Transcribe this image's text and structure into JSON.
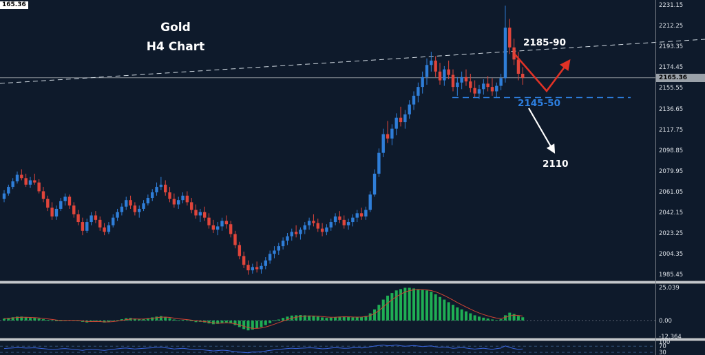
{
  "window": {
    "corner_price": "165.36"
  },
  "titles": {
    "line1": "Gold",
    "line2": "H4 Chart"
  },
  "annotations": {
    "resistance_label": "2185-90",
    "support_label": "2145-50",
    "target_label": "2110",
    "current_price": "2165.36"
  },
  "axis": {
    "price_labels": [
      2231.15,
      2212.25,
      2193.35,
      2174.45,
      2155.55,
      2136.65,
      2117.75,
      2098.85,
      2079.95,
      2061.05,
      2042.15,
      2023.25,
      2004.35,
      1985.45
    ],
    "macd_labels": [
      {
        "text": "25.039",
        "value": 25.039
      },
      {
        "text": "0.00",
        "value": 0
      },
      {
        "text": "-12.364",
        "value": -12.364
      }
    ],
    "rsi_labels": [
      {
        "text": "100",
        "value": 100
      },
      {
        "text": "70",
        "value": 70
      },
      {
        "text": "30",
        "value": 30
      }
    ]
  },
  "colors": {
    "background": "#0e1a2b",
    "up_candle": "#2f7ed8",
    "down_candle": "#e0453b",
    "macd_histogram": "#1fae54",
    "macd_signal": "#cf4433",
    "rsi_line": "#3a66e0",
    "level_blue": "#2d7fe0",
    "trendline": "#cfd8e0",
    "hline": "#8a9098",
    "annotation_red": "#e03226",
    "annotation_white": "#ffffff",
    "axis_text": "#dde2e8"
  },
  "chart_data": [
    {
      "type": "candlestick",
      "symbol": "Gold",
      "timeframe": "H4",
      "title": "Gold H4 Chart",
      "current_price": 2165.36,
      "ylim": [
        1985.45,
        2231.15
      ],
      "y_axis_ticks": [
        2231.15,
        2212.25,
        2193.35,
        2174.45,
        2155.55,
        2136.65,
        2117.75,
        2098.85,
        2079.95,
        2061.05,
        2042.15,
        2023.25,
        2004.35,
        1985.45
      ],
      "annotations": {
        "resistance_zone": "2185-90",
        "support_zone": "2145-50",
        "downside_target": "2110",
        "trendline": "ascending dashed trendline",
        "projection": "red zigzag arrow up to 2185-90, white arrow down to 2110"
      },
      "candles": [
        [
          2055,
          2063,
          2052,
          2060
        ],
        [
          2060,
          2068,
          2058,
          2066
        ],
        [
          2066,
          2074,
          2064,
          2071
        ],
        [
          2071,
          2080,
          2069,
          2077
        ],
        [
          2077,
          2082,
          2072,
          2074
        ],
        [
          2074,
          2078,
          2066,
          2068
        ],
        [
          2068,
          2075,
          2065,
          2072
        ],
        [
          2072,
          2078,
          2068,
          2070
        ],
        [
          2070,
          2073,
          2060,
          2062
        ],
        [
          2062,
          2066,
          2052,
          2055
        ],
        [
          2055,
          2058,
          2044,
          2047
        ],
        [
          2047,
          2052,
          2036,
          2039
        ],
        [
          2039,
          2049,
          2036,
          2046
        ],
        [
          2046,
          2056,
          2044,
          2053
        ],
        [
          2053,
          2060,
          2049,
          2057
        ],
        [
          2057,
          2059,
          2046,
          2049
        ],
        [
          2049,
          2052,
          2038,
          2041
        ],
        [
          2041,
          2045,
          2031,
          2034
        ],
        [
          2034,
          2038,
          2022,
          2026
        ],
        [
          2026,
          2037,
          2024,
          2034
        ],
        [
          2034,
          2043,
          2031,
          2040
        ],
        [
          2040,
          2044,
          2033,
          2036
        ],
        [
          2036,
          2039,
          2026,
          2029
        ],
        [
          2029,
          2033,
          2022,
          2025
        ],
        [
          2025,
          2034,
          2023,
          2031
        ],
        [
          2031,
          2041,
          2029,
          2038
        ],
        [
          2038,
          2046,
          2035,
          2043
        ],
        [
          2043,
          2051,
          2040,
          2048
        ],
        [
          2048,
          2057,
          2045,
          2054
        ],
        [
          2054,
          2058,
          2046,
          2049
        ],
        [
          2049,
          2052,
          2040,
          2043
        ],
        [
          2043,
          2049,
          2038,
          2046
        ],
        [
          2046,
          2054,
          2044,
          2051
        ],
        [
          2051,
          2059,
          2049,
          2056
        ],
        [
          2056,
          2064,
          2053,
          2061
        ],
        [
          2061,
          2070,
          2058,
          2066
        ],
        [
          2066,
          2075,
          2063,
          2068
        ],
        [
          2068,
          2072,
          2058,
          2061
        ],
        [
          2061,
          2066,
          2052,
          2055
        ],
        [
          2055,
          2060,
          2047,
          2050
        ],
        [
          2050,
          2057,
          2046,
          2054
        ],
        [
          2054,
          2061,
          2051,
          2058
        ],
        [
          2058,
          2062,
          2049,
          2052
        ],
        [
          2052,
          2056,
          2042,
          2045
        ],
        [
          2045,
          2050,
          2037,
          2040
        ],
        [
          2040,
          2046,
          2034,
          2043
        ],
        [
          2043,
          2048,
          2035,
          2038
        ],
        [
          2038,
          2042,
          2028,
          2031
        ],
        [
          2031,
          2036,
          2024,
          2027
        ],
        [
          2027,
          2034,
          2022,
          2030
        ],
        [
          2030,
          2038,
          2026,
          2035
        ],
        [
          2035,
          2040,
          2028,
          2032
        ],
        [
          2032,
          2035,
          2020,
          2023
        ],
        [
          2023,
          2026,
          2010,
          2013
        ],
        [
          2013,
          2016,
          2000,
          2003
        ],
        [
          2003,
          2007,
          1992,
          1995
        ],
        [
          1995,
          1999,
          1986,
          1990
        ],
        [
          1990,
          1996,
          1987,
          1993
        ],
        [
          1993,
          1998,
          1988,
          1991
        ],
        [
          1991,
          1997,
          1987,
          1994
        ],
        [
          1994,
          2002,
          1991,
          1999
        ],
        [
          1999,
          2008,
          1996,
          2005
        ],
        [
          2005,
          2012,
          2001,
          2008
        ],
        [
          2008,
          2015,
          2004,
          2012
        ],
        [
          2012,
          2020,
          2009,
          2017
        ],
        [
          2017,
          2024,
          2013,
          2021
        ],
        [
          2021,
          2028,
          2017,
          2025
        ],
        [
          2025,
          2031,
          2020,
          2023
        ],
        [
          2023,
          2029,
          2018,
          2027
        ],
        [
          2027,
          2034,
          2023,
          2031
        ],
        [
          2031,
          2038,
          2027,
          2035
        ],
        [
          2035,
          2041,
          2030,
          2033
        ],
        [
          2033,
          2037,
          2025,
          2028
        ],
        [
          2028,
          2033,
          2021,
          2025
        ],
        [
          2025,
          2032,
          2022,
          2029
        ],
        [
          2029,
          2037,
          2026,
          2034
        ],
        [
          2034,
          2042,
          2031,
          2039
        ],
        [
          2039,
          2044,
          2033,
          2036
        ],
        [
          2036,
          2040,
          2028,
          2031
        ],
        [
          2031,
          2037,
          2027,
          2034
        ],
        [
          2034,
          2041,
          2030,
          2038
        ],
        [
          2038,
          2045,
          2034,
          2042
        ],
        [
          2042,
          2047,
          2036,
          2039
        ],
        [
          2039,
          2048,
          2036,
          2045
        ],
        [
          2045,
          2062,
          2043,
          2059
        ],
        [
          2059,
          2082,
          2057,
          2078
        ],
        [
          2078,
          2101,
          2075,
          2097
        ],
        [
          2097,
          2119,
          2093,
          2114
        ],
        [
          2114,
          2126,
          2106,
          2110
        ],
        [
          2110,
          2123,
          2104,
          2119
        ],
        [
          2119,
          2133,
          2113,
          2129
        ],
        [
          2129,
          2139,
          2121,
          2125
        ],
        [
          2125,
          2136,
          2119,
          2132
        ],
        [
          2132,
          2145,
          2128,
          2141
        ],
        [
          2141,
          2153,
          2136,
          2149
        ],
        [
          2149,
          2161,
          2143,
          2157
        ],
        [
          2157,
          2171,
          2151,
          2166
        ],
        [
          2166,
          2183,
          2159,
          2177
        ],
        [
          2177,
          2189,
          2171,
          2181
        ],
        [
          2181,
          2185,
          2166,
          2171
        ],
        [
          2171,
          2179,
          2159,
          2163
        ],
        [
          2163,
          2176,
          2158,
          2173
        ],
        [
          2173,
          2181,
          2164,
          2168
        ],
        [
          2168,
          2173,
          2153,
          2157
        ],
        [
          2157,
          2166,
          2149,
          2161
        ],
        [
          2161,
          2171,
          2155,
          2166
        ],
        [
          2166,
          2173,
          2158,
          2162
        ],
        [
          2162,
          2169,
          2152,
          2156
        ],
        [
          2156,
          2163,
          2147,
          2151
        ],
        [
          2151,
          2159,
          2146,
          2155
        ],
        [
          2155,
          2164,
          2150,
          2160
        ],
        [
          2160,
          2167,
          2153,
          2157
        ],
        [
          2157,
          2165,
          2149,
          2153
        ],
        [
          2153,
          2161,
          2147,
          2158
        ],
        [
          2158,
          2169,
          2154,
          2165
        ],
        [
          2165,
          2231,
          2161,
          2211
        ],
        [
          2211,
          2219,
          2187,
          2193
        ],
        [
          2193,
          2201,
          2177,
          2182
        ],
        [
          2182,
          2189,
          2163,
          2169
        ],
        [
          2169,
          2175,
          2159,
          2165.36
        ]
      ]
    },
    {
      "type": "bar",
      "name": "MACD histogram",
      "ylim": [
        -12.364,
        25.039
      ],
      "axis_labels": [
        "25.039",
        "0.00",
        "-12.364"
      ],
      "values": [
        1.5,
        2,
        2.5,
        3,
        3,
        2.5,
        2,
        2,
        1.5,
        1,
        0.5,
        0,
        -0.5,
        -0.5,
        0,
        0.5,
        0.2,
        -0.3,
        -1,
        -1.5,
        -1,
        -0.5,
        -1,
        -1.5,
        -1,
        -0.3,
        0.3,
        1,
        1.8,
        2,
        1.5,
        1,
        1.2,
        1.8,
        2.4,
        3,
        3.4,
        2.8,
        1.8,
        0.8,
        0.2,
        0.5,
        0.2,
        -0.5,
        -1.2,
        -1,
        -1.5,
        -2.2,
        -2.8,
        -2.5,
        -1.8,
        -1.5,
        -2.2,
        -3.5,
        -5,
        -6.5,
        -7.5,
        -7,
        -6,
        -5,
        -3.5,
        -2,
        -0.5,
        0.8,
        2,
        3,
        3.8,
        4,
        4.2,
        4,
        3.8,
        3.5,
        3,
        2.4,
        2,
        2.2,
        2.6,
        3,
        3.2,
        2.8,
        2.4,
        2.6,
        2.8,
        3.5,
        5.5,
        8.5,
        12,
        16,
        19,
        21,
        23,
        24,
        25,
        25,
        24.5,
        24,
        23.5,
        23,
        22,
        20,
        18,
        16,
        14,
        12,
        10,
        8.5,
        7,
        5.5,
        4,
        3,
        2.2,
        1.5,
        0.8,
        0.3,
        1,
        4,
        6,
        5,
        3.5,
        2.5
      ]
    },
    {
      "type": "line",
      "name": "RSI",
      "levels": [
        100,
        70,
        30
      ],
      "values": [
        55,
        57,
        59,
        61,
        60,
        58,
        59,
        60,
        57,
        54,
        51,
        48,
        50,
        53,
        55,
        52,
        49,
        46,
        43,
        47,
        50,
        48,
        45,
        43,
        46,
        50,
        53,
        56,
        58,
        55,
        52,
        54,
        56,
        58,
        60,
        63,
        64,
        60,
        56,
        52,
        54,
        56,
        53,
        49,
        46,
        48,
        45,
        42,
        39,
        41,
        44,
        42,
        38,
        34,
        31,
        29,
        27,
        32,
        31,
        34,
        38,
        43,
        46,
        49,
        52,
        55,
        57,
        55,
        57,
        58,
        60,
        59,
        56,
        53,
        55,
        58,
        61,
        59,
        56,
        57,
        60,
        62,
        59,
        61,
        66,
        71,
        75,
        78,
        73,
        75,
        78,
        73,
        70,
        72,
        75,
        71,
        68,
        70,
        72,
        66,
        62,
        65,
        61,
        56,
        59,
        62,
        58,
        54,
        51,
        54,
        57,
        53,
        50,
        54,
        58,
        72,
        62,
        55,
        49,
        52
      ]
    }
  ]
}
